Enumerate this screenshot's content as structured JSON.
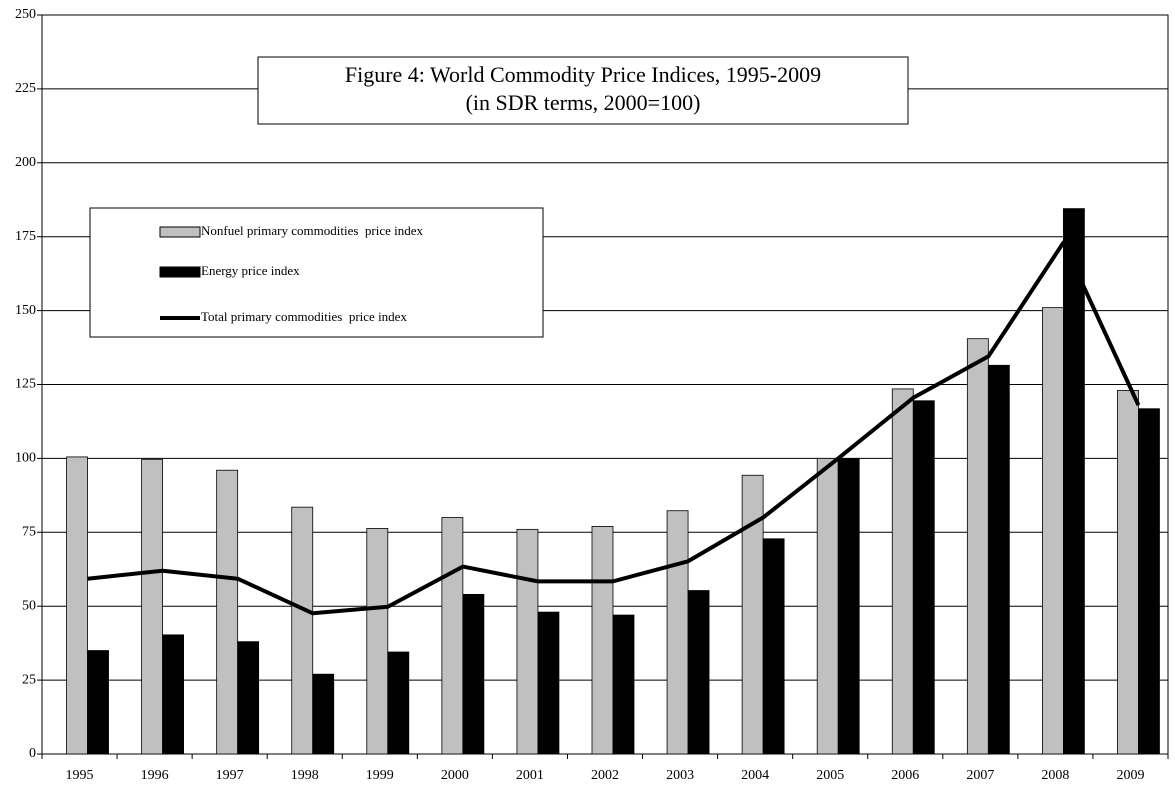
{
  "chart_data": {
    "type": "bar",
    "title": "Figure 4: World Commodity Price Indices, 1995-2009",
    "subtitle": "(in SDR terms, 2000=100)",
    "categories": [
      "1995",
      "1996",
      "1997",
      "1998",
      "1999",
      "2000",
      "2001",
      "2002",
      "2003",
      "2004",
      "2005",
      "2006",
      "2007",
      "2008",
      "2009"
    ],
    "series": [
      {
        "name": "Nonfuel primary commodities  price index",
        "type": "bar",
        "color": "#c0c0c0",
        "values": [
          100.5,
          99.7,
          96,
          83.5,
          76.3,
          80,
          76,
          77,
          82.3,
          94.3,
          100,
          123.5,
          140.5,
          151,
          123
        ]
      },
      {
        "name": "Energy price index",
        "type": "bar",
        "color": "#000000",
        "values": [
          35,
          40.3,
          38,
          27,
          34.5,
          54,
          48,
          47,
          55.3,
          72.8,
          100,
          119.5,
          131.5,
          184.5,
          116.8
        ]
      },
      {
        "name": "Total primary commodities  price index",
        "type": "line",
        "color": "#000000",
        "values": [
          59.3,
          62,
          59.3,
          47.6,
          49.8,
          63.4,
          58.4,
          58.4,
          65.2,
          80,
          100,
          120.5,
          134.5,
          173,
          118
        ]
      }
    ],
    "ylim": [
      0,
      250
    ],
    "yticks": [
      0,
      25,
      50,
      75,
      100,
      125,
      150,
      175,
      200,
      225,
      250
    ],
    "grid": true
  }
}
